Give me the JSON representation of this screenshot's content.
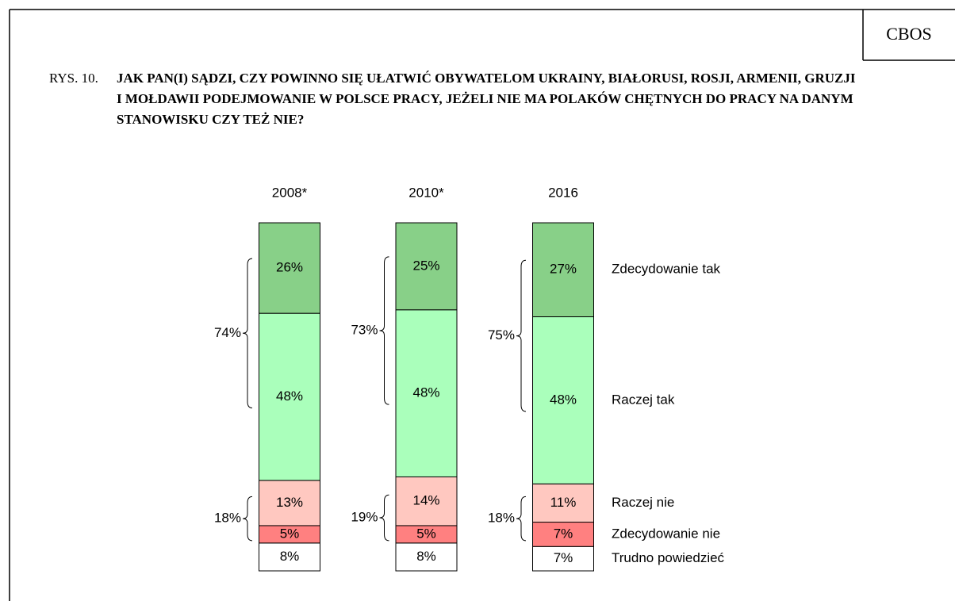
{
  "header": {
    "source": "CBOS",
    "figure": "RYS. 10."
  },
  "chart_data": {
    "type": "bar",
    "stacked": true,
    "title": "JAK PAN(I) SĄDZI, CZY POWINNO SIĘ UŁATWIĆ OBYWATELOM UKRAINY, BIAŁORUSI, ROSJI, ARMENII, GRUZJI I MOŁDAWII PODEJMOWANIE W POLSCE PRACY, JEŻELI NIE MA POLAKÓW CHĘTNYCH DO PRACY NA DANYM STANOWISKU CZY TEŻ NIE?",
    "categories": [
      "2008*",
      "2010*",
      "2016"
    ],
    "series": [
      {
        "name": "Zdecydowanie tak",
        "color": "#88d088",
        "values": [
          26,
          25,
          27
        ],
        "value_labels": [
          "26%",
          "25%",
          "27%"
        ]
      },
      {
        "name": "Raczej tak",
        "color": "#aaffbb",
        "values": [
          48,
          48,
          48
        ],
        "value_labels": [
          "48%",
          "48%",
          "48%"
        ]
      },
      {
        "name": "Raczej nie",
        "color": "#ffc8c0",
        "values": [
          13,
          14,
          11
        ],
        "value_labels": [
          "13%",
          "14%",
          "11%"
        ]
      },
      {
        "name": "Zdecydowanie nie",
        "color": "#ff8080",
        "values": [
          5,
          5,
          7
        ],
        "value_labels": [
          "5%",
          "5%",
          "7%"
        ]
      },
      {
        "name": "Trudno powiedzieć",
        "color": "#ffffff",
        "values": [
          8,
          8,
          7
        ],
        "value_labels": [
          "8%",
          "8%",
          "7%"
        ]
      }
    ],
    "annotations": [
      {
        "values": [
          74,
          73,
          75
        ],
        "value_labels": [
          "74%",
          "73%",
          "75%"
        ]
      },
      {
        "values": [
          18,
          19,
          18
        ],
        "value_labels": [
          "18%",
          "19%",
          "18%"
        ]
      }
    ],
    "ylim": [
      0,
      100
    ]
  }
}
